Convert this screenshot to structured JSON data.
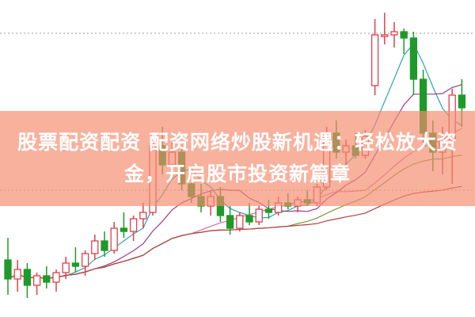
{
  "title": "股票配资配资 配资网络炒股新机遇：轻松放大资金，开启股市投资新篇章",
  "colors": {
    "up": "#e0404a",
    "down": "#1f9a2a",
    "banner": "#f48c6e",
    "ma": [
      "#2aa5b0",
      "#9a3a8a",
      "#e06a9a",
      "#7a9a3a",
      "#b04040"
    ]
  },
  "chart_data": {
    "type": "candlestick",
    "title": "",
    "xlabel": "",
    "ylabel": "",
    "grid": "dotted horizontal",
    "ohlc": [
      [
        18,
        25,
        7,
        12
      ],
      [
        12,
        18,
        8,
        15
      ],
      [
        15,
        17,
        6,
        10
      ],
      [
        10,
        14,
        7,
        13
      ],
      [
        13,
        16,
        9,
        11
      ],
      [
        11,
        15,
        8,
        14
      ],
      [
        14,
        19,
        12,
        17
      ],
      [
        17,
        22,
        14,
        16
      ],
      [
        16,
        21,
        13,
        20
      ],
      [
        20,
        26,
        18,
        24
      ],
      [
        24,
        27,
        19,
        21
      ],
      [
        21,
        30,
        20,
        28
      ],
      [
        28,
        33,
        25,
        27
      ],
      [
        27,
        32,
        24,
        31
      ],
      [
        31,
        36,
        28,
        33
      ],
      [
        33,
        56,
        32,
        54
      ],
      [
        54,
        60,
        45,
        48
      ],
      [
        48,
        55,
        44,
        52
      ],
      [
        52,
        54,
        40,
        42
      ],
      [
        42,
        45,
        36,
        38
      ],
      [
        38,
        42,
        33,
        35
      ],
      [
        35,
        40,
        32,
        38
      ],
      [
        38,
        41,
        30,
        32
      ],
      [
        32,
        35,
        26,
        28
      ],
      [
        28,
        33,
        27,
        32
      ],
      [
        32,
        36,
        29,
        30
      ],
      [
        30,
        35,
        29,
        34
      ],
      [
        34,
        37,
        31,
        33
      ],
      [
        33,
        38,
        32,
        36
      ],
      [
        36,
        39,
        34,
        35
      ],
      [
        35,
        38,
        33,
        37
      ],
      [
        37,
        40,
        35,
        36
      ],
      [
        36,
        42,
        35,
        41
      ],
      [
        41,
        60,
        40,
        58
      ],
      [
        58,
        62,
        50,
        52
      ],
      [
        52,
        56,
        48,
        54
      ],
      [
        54,
        58,
        50,
        51
      ],
      [
        51,
        59,
        50,
        57
      ],
      [
        73,
        94,
        70,
        89
      ],
      [
        89,
        96,
        86,
        89
      ],
      [
        89,
        93,
        85,
        90
      ],
      [
        90,
        91,
        83,
        88
      ],
      [
        88,
        90,
        70,
        75
      ],
      [
        75,
        78,
        55,
        58
      ],
      [
        58,
        62,
        46,
        52
      ],
      [
        52,
        60,
        45,
        56
      ],
      [
        56,
        72,
        42,
        70
      ],
      [
        70,
        75,
        60,
        66
      ]
    ],
    "moving_averages": [
      5,
      10,
      20,
      30,
      60
    ]
  }
}
